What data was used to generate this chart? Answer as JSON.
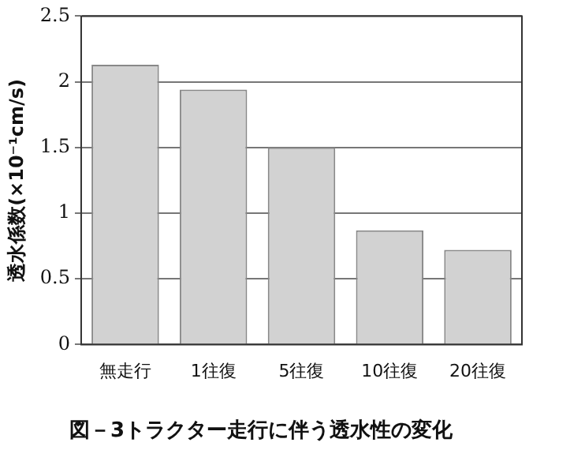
{
  "chart_data": {
    "type": "bar",
    "title": "図－3トラクター走行に伴う透水性の変化",
    "ylabel": "透水係数(×10⁻¹cm/s)",
    "categories": [
      "無走行",
      "1往復",
      "5往復",
      "10往復",
      "20往復"
    ],
    "values": [
      2.13,
      1.94,
      1.5,
      0.87,
      0.72
    ],
    "color": "#d2d2d2",
    "ylim": [
      0,
      2.5
    ],
    "yticks": [
      0,
      0.5,
      1,
      1.5,
      2,
      2.5
    ],
    "grid": "y",
    "legend": false
  }
}
